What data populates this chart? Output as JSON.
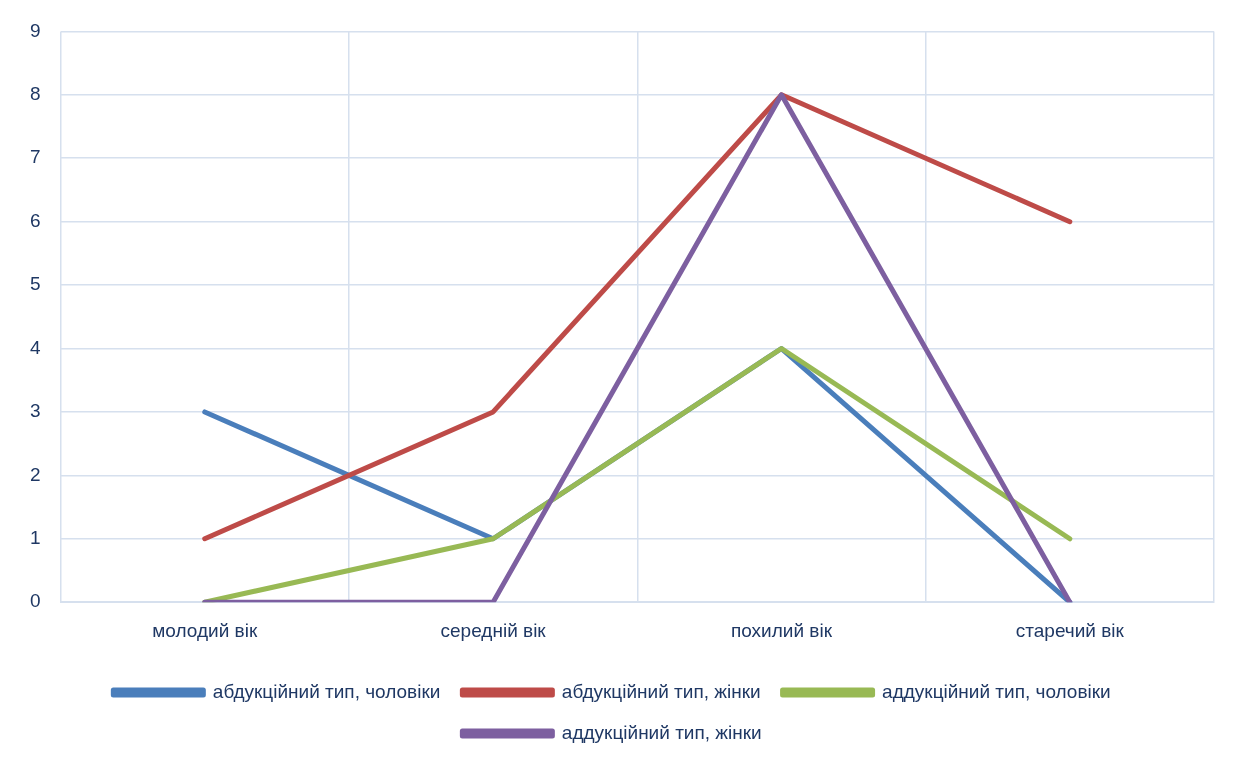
{
  "chart_data": {
    "type": "line",
    "categories": [
      "молодий вік",
      "середній вік",
      "похилий вік",
      "старечий вік"
    ],
    "series": [
      {
        "name": "абдукційний тип, чоловіки",
        "color": "#4a7ebb",
        "values": [
          3,
          1,
          4,
          0
        ]
      },
      {
        "name": "абдукційний тип, жінки",
        "color": "#be4b48",
        "values": [
          1,
          3,
          8,
          6
        ]
      },
      {
        "name": "аддукційний тип, чоловіки",
        "color": "#98b954",
        "values": [
          0,
          1,
          4,
          1
        ]
      },
      {
        "name": "аддукційний тип, жінки",
        "color": "#7d5fa0",
        "values": [
          0,
          0,
          8,
          0
        ]
      }
    ],
    "ylim": [
      0,
      9
    ],
    "yticks": [
      0,
      1,
      2,
      3,
      4,
      5,
      6,
      7,
      8,
      9
    ],
    "grid": true,
    "legend": "bottom",
    "marker": "none",
    "line_style": "solid"
  }
}
